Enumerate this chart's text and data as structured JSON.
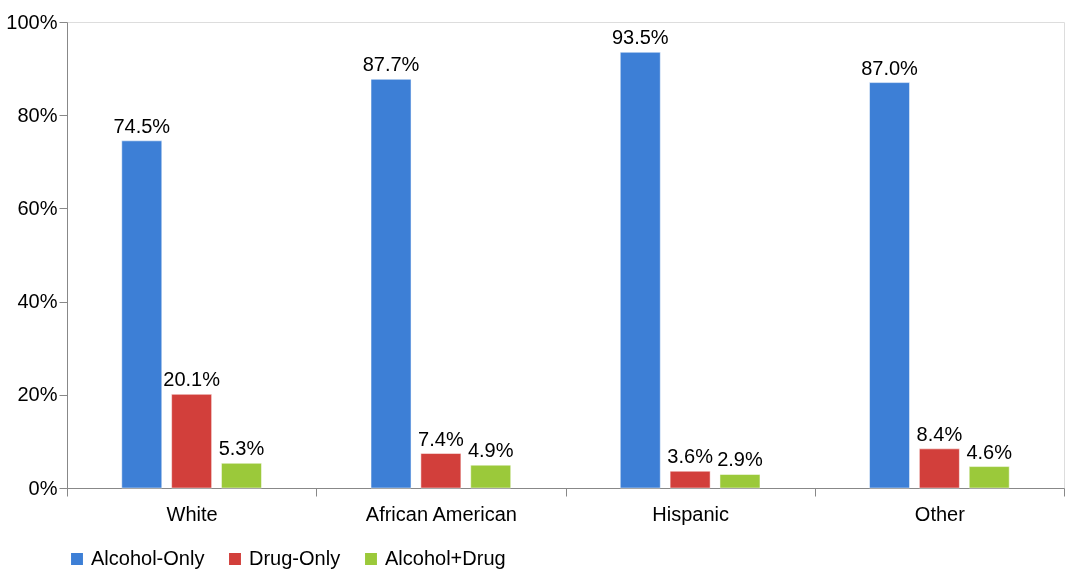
{
  "chart_data": {
    "type": "bar",
    "categories": [
      "White",
      "African American",
      "Hispanic",
      "Other"
    ],
    "series": [
      {
        "name": "Alcohol-Only",
        "color": "#3d7fd6",
        "values": [
          74.5,
          87.7,
          93.5,
          87.0
        ],
        "value_labels": [
          "74.5%",
          "87.7%",
          "93.5%",
          "87.0%"
        ]
      },
      {
        "name": "Drug-Only",
        "color": "#d23f3b",
        "values": [
          20.1,
          7.4,
          3.6,
          8.4
        ],
        "value_labels": [
          "20.1%",
          "7.4%",
          "3.6%",
          "8.4%"
        ]
      },
      {
        "name": "Alcohol+Drug",
        "color": "#9bc93a",
        "values": [
          5.3,
          4.9,
          2.9,
          4.6
        ],
        "value_labels": [
          "5.3%",
          "4.9%",
          "2.9%",
          "4.6%"
        ]
      }
    ],
    "ylim": [
      0,
      100
    ],
    "yticks": [
      {
        "value": 0,
        "label": "0%"
      },
      {
        "value": 20,
        "label": "20%"
      },
      {
        "value": 40,
        "label": "40%"
      },
      {
        "value": 60,
        "label": "60%"
      },
      {
        "value": 80,
        "label": "80%"
      },
      {
        "value": 100,
        "label": "100%"
      }
    ],
    "grid": false,
    "legend": "bottom"
  }
}
